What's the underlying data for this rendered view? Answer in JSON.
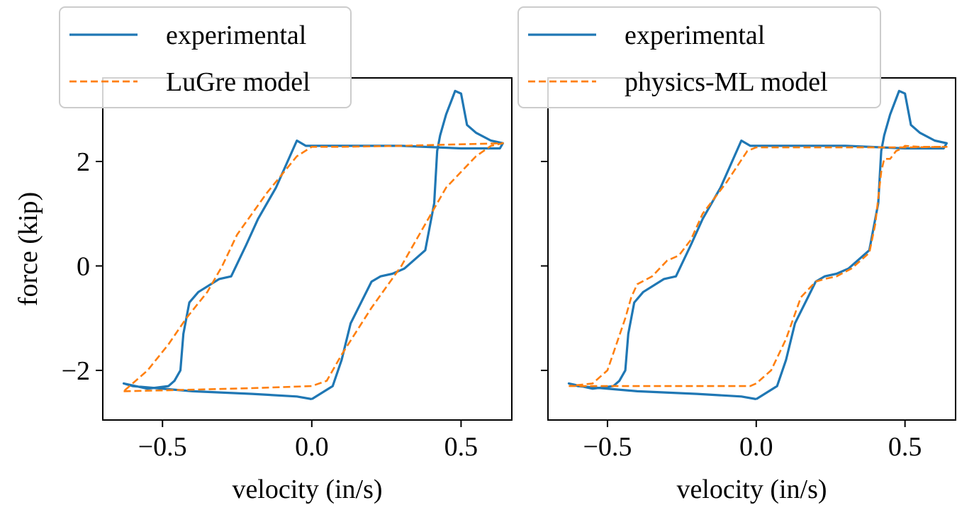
{
  "chart_data": [
    {
      "type": "line",
      "xlabel": "velocity (in/s)",
      "ylabel": "force (kip)",
      "xlim": [
        -0.7,
        0.67
      ],
      "ylim": [
        -2.95,
        3.6
      ],
      "xticks": [
        {
          "v": -0.5,
          "label": "−0.5"
        },
        {
          "v": 0.0,
          "label": "0.0"
        },
        {
          "v": 0.5,
          "label": "0.5"
        }
      ],
      "yticks": [
        {
          "v": -2,
          "label": "−2"
        },
        {
          "v": 0,
          "label": "0"
        },
        {
          "v": 2,
          "label": "2"
        }
      ],
      "show_ytick_labels": true,
      "legend_position": "top-left",
      "colors": {
        "experimental": "#1f77b4",
        "model": "#ff7f0e"
      },
      "series": [
        {
          "name": "experimental",
          "style": "solid",
          "x": [
            0.0,
            0.07,
            0.1,
            0.13,
            0.2,
            0.23,
            0.27,
            0.31,
            0.38,
            0.41,
            0.42,
            0.43,
            0.45,
            0.47,
            0.48,
            0.5,
            0.52,
            0.55,
            0.6,
            0.64,
            0.63,
            0.5,
            0.3,
            0.1,
            -0.02,
            -0.05,
            -0.12,
            -0.18,
            -0.22,
            -0.27,
            -0.31,
            -0.38,
            -0.41,
            -0.43,
            -0.44,
            -0.46,
            -0.48,
            -0.55,
            -0.63,
            -0.6,
            -0.4,
            -0.2,
            -0.05,
            0.0
          ],
          "y": [
            -2.55,
            -2.3,
            -1.8,
            -1.1,
            -0.3,
            -0.2,
            -0.15,
            -0.05,
            0.3,
            1.2,
            2.2,
            2.5,
            2.9,
            3.2,
            3.35,
            3.3,
            2.7,
            2.55,
            2.4,
            2.35,
            2.25,
            2.25,
            2.3,
            2.3,
            2.3,
            2.4,
            1.5,
            0.9,
            0.4,
            -0.2,
            -0.25,
            -0.5,
            -0.7,
            -1.3,
            -2.0,
            -2.2,
            -2.3,
            -2.35,
            -2.25,
            -2.3,
            -2.4,
            -2.45,
            -2.5,
            -2.55
          ]
        },
        {
          "name": "LuGre model",
          "style": "dashed",
          "x": [
            -0.63,
            -0.4,
            -0.2,
            0.0,
            0.05,
            0.1,
            0.2,
            0.3,
            0.4,
            0.45,
            0.5,
            0.55,
            0.6,
            0.64,
            0.5,
            0.3,
            0.1,
            0.0,
            -0.05,
            -0.15,
            -0.25,
            -0.3,
            -0.35,
            -0.42,
            -0.48,
            -0.55,
            -0.63
          ],
          "y": [
            -2.4,
            -2.37,
            -2.34,
            -2.3,
            -2.2,
            -1.7,
            -0.8,
            0.0,
            1.0,
            1.5,
            1.8,
            2.1,
            2.3,
            2.35,
            2.33,
            2.3,
            2.28,
            2.28,
            2.1,
            1.4,
            0.6,
            0.0,
            -0.5,
            -1.0,
            -1.5,
            -2.0,
            -2.4
          ]
        }
      ]
    },
    {
      "type": "line",
      "xlabel": "velocity (in/s)",
      "ylabel": "",
      "xlim": [
        -0.7,
        0.67
      ],
      "ylim": [
        -2.95,
        3.6
      ],
      "xticks": [
        {
          "v": -0.5,
          "label": "−0.5"
        },
        {
          "v": 0.0,
          "label": "0.0"
        },
        {
          "v": 0.5,
          "label": "0.5"
        }
      ],
      "yticks": [
        {
          "v": -2,
          "label": "−2"
        },
        {
          "v": 0,
          "label": "0"
        },
        {
          "v": 2,
          "label": "2"
        }
      ],
      "show_ytick_labels": false,
      "legend_position": "top-left",
      "colors": {
        "experimental": "#1f77b4",
        "model": "#ff7f0e"
      },
      "series": [
        {
          "name": "experimental",
          "style": "solid",
          "x": [
            0.0,
            0.07,
            0.1,
            0.13,
            0.2,
            0.23,
            0.27,
            0.31,
            0.38,
            0.41,
            0.42,
            0.43,
            0.45,
            0.47,
            0.48,
            0.5,
            0.52,
            0.55,
            0.6,
            0.64,
            0.63,
            0.5,
            0.3,
            0.1,
            -0.02,
            -0.05,
            -0.12,
            -0.18,
            -0.22,
            -0.27,
            -0.31,
            -0.38,
            -0.41,
            -0.43,
            -0.44,
            -0.46,
            -0.48,
            -0.55,
            -0.63,
            -0.6,
            -0.4,
            -0.2,
            -0.05,
            0.0
          ],
          "y": [
            -2.55,
            -2.3,
            -1.8,
            -1.1,
            -0.3,
            -0.2,
            -0.15,
            -0.05,
            0.3,
            1.2,
            2.2,
            2.5,
            2.9,
            3.2,
            3.35,
            3.3,
            2.7,
            2.55,
            2.4,
            2.35,
            2.25,
            2.25,
            2.3,
            2.3,
            2.3,
            2.4,
            1.5,
            0.9,
            0.4,
            -0.2,
            -0.25,
            -0.5,
            -0.7,
            -1.3,
            -2.0,
            -2.2,
            -2.3,
            -2.35,
            -2.25,
            -2.3,
            -2.4,
            -2.45,
            -2.5,
            -2.55
          ]
        },
        {
          "name": "physics-ML model",
          "style": "dashed",
          "x": [
            -0.63,
            -0.4,
            -0.2,
            -0.02,
            0.0,
            0.05,
            0.1,
            0.15,
            0.2,
            0.23,
            0.27,
            0.32,
            0.38,
            0.4,
            0.42,
            0.43,
            0.45,
            0.47,
            0.49,
            0.5,
            0.55,
            0.64,
            0.5,
            0.3,
            0.1,
            0.0,
            -0.03,
            -0.1,
            -0.18,
            -0.22,
            -0.26,
            -0.3,
            -0.35,
            -0.4,
            -0.42,
            -0.44,
            -0.47,
            -0.5,
            -0.55,
            -0.63
          ],
          "y": [
            -2.3,
            -2.3,
            -2.3,
            -2.3,
            -2.25,
            -2.0,
            -1.4,
            -0.6,
            -0.3,
            -0.25,
            -0.2,
            -0.05,
            0.25,
            0.8,
            1.8,
            2.05,
            2.05,
            2.2,
            2.25,
            2.3,
            2.28,
            2.28,
            2.27,
            2.27,
            2.27,
            2.27,
            2.2,
            1.6,
            1.0,
            0.5,
            0.2,
            0.1,
            -0.2,
            -0.35,
            -0.6,
            -1.0,
            -1.5,
            -2.0,
            -2.25,
            -2.3
          ]
        }
      ]
    }
  ]
}
